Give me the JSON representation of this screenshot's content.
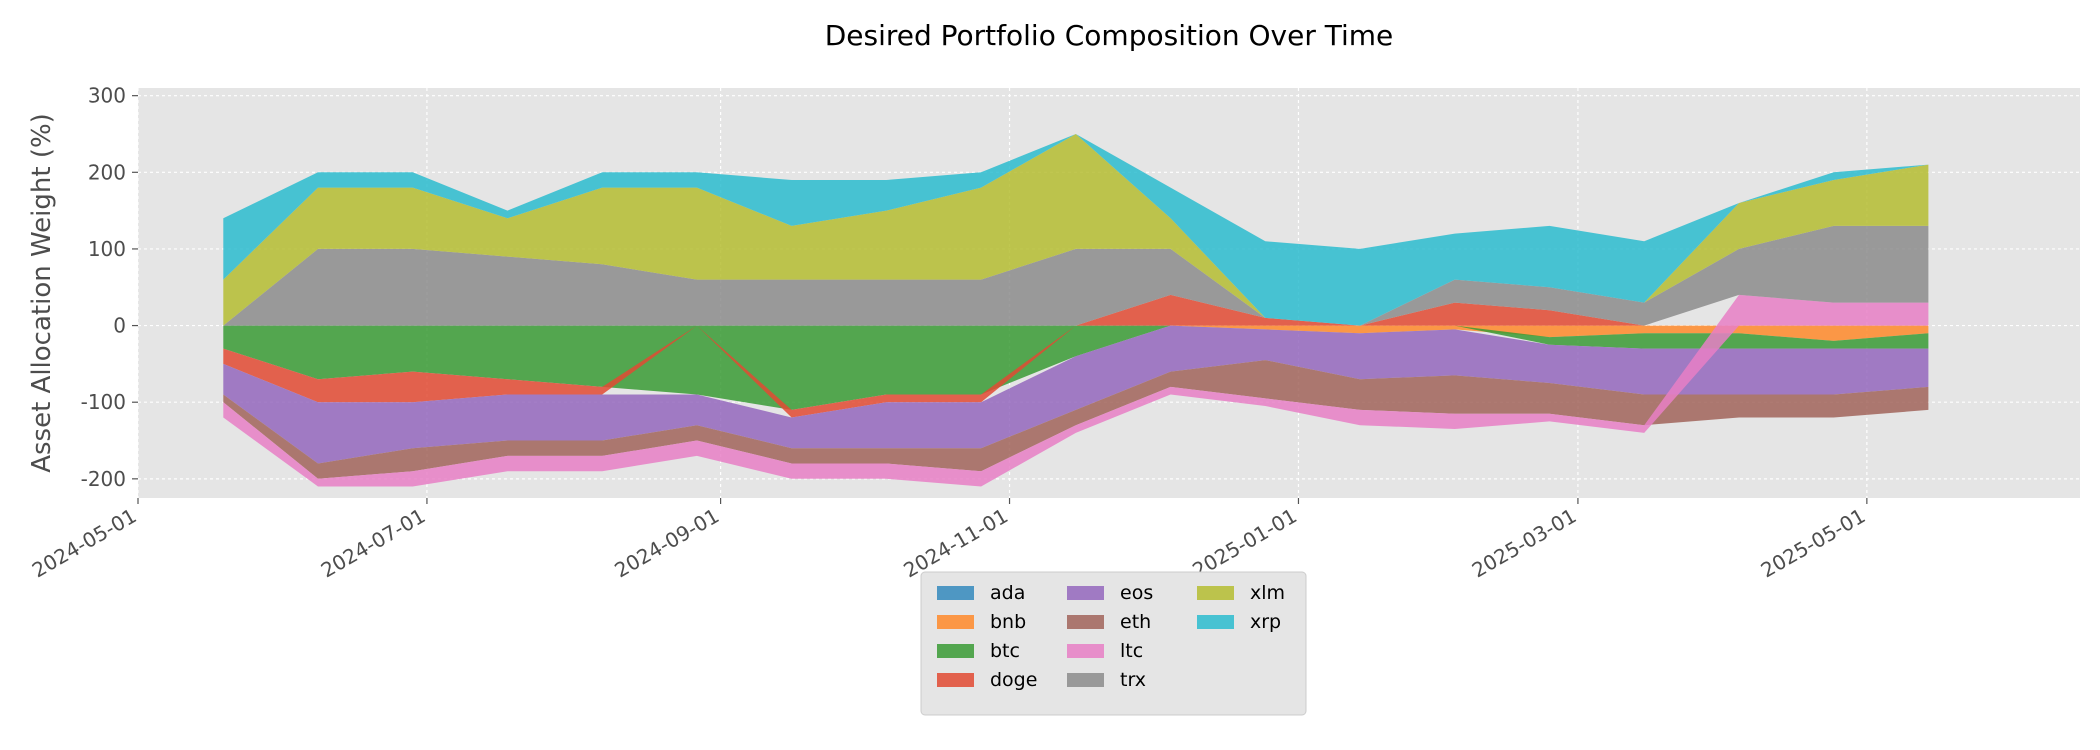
{
  "chart_data": {
    "type": "area",
    "title": "Desired Portfolio Composition Over Time",
    "xlabel": "",
    "ylabel": "Asset Allocation Weight (%)",
    "xlim": [
      "2024-05-01",
      "2025-06-15"
    ],
    "ylim": [
      -225,
      310
    ],
    "x_ticks": [
      "2024-05-01",
      "2024-07-01",
      "2024-09-01",
      "2024-11-01",
      "2025-01-01",
      "2025-03-01",
      "2025-05-01"
    ],
    "y_ticks": [
      300,
      200,
      100,
      0,
      -100,
      -200
    ],
    "grid": true,
    "legend_position": "bottom-center",
    "x": [
      "2024-05-19",
      "2024-06-08",
      "2024-06-28",
      "2024-07-18",
      "2024-08-07",
      "2024-08-27",
      "2024-09-16",
      "2024-10-06",
      "2024-10-26",
      "2024-11-15",
      "2024-12-05",
      "2024-12-25",
      "2025-01-14",
      "2025-02-03",
      "2025-02-23",
      "2025-03-15",
      "2025-04-04",
      "2025-04-24",
      "2025-05-14"
    ],
    "series": [
      {
        "name": "ada",
        "color": "#348abd",
        "values": [
          0,
          0,
          0,
          0,
          0,
          0,
          0,
          0,
          0,
          0,
          0,
          0,
          0,
          0,
          0,
          0,
          0,
          0,
          0
        ]
      },
      {
        "name": "bnb",
        "color": "#ff8a2a",
        "values": [
          0,
          0,
          0,
          0,
          0,
          0,
          0,
          0,
          0,
          0,
          0,
          -5,
          -10,
          -5,
          -15,
          -10,
          -10,
          -20,
          -10
        ]
      },
      {
        "name": "btc",
        "color": "#3a9b35",
        "values": [
          -30,
          -70,
          -60,
          -70,
          -80,
          -90,
          -110,
          -90,
          -90,
          -40,
          0,
          0,
          0,
          0,
          -10,
          -20,
          -20,
          -10,
          -20
        ]
      },
      {
        "name": "doge",
        "color": "#e24a33",
        "values": [
          -20,
          -30,
          -40,
          -20,
          -10,
          0,
          -10,
          -10,
          -10,
          0,
          40,
          10,
          0,
          30,
          20,
          0,
          0,
          0,
          0
        ]
      },
      {
        "name": "eos",
        "color": "#9467bd",
        "values": [
          -40,
          -80,
          -60,
          -60,
          -60,
          -40,
          -40,
          -60,
          -60,
          -70,
          -60,
          -40,
          -60,
          -60,
          -50,
          -60,
          -60,
          -60,
          -50
        ]
      },
      {
        "name": "eth",
        "color": "#a1645b",
        "values": [
          -10,
          -20,
          -30,
          -20,
          -20,
          -20,
          -20,
          -20,
          -30,
          -20,
          -20,
          -50,
          -40,
          -50,
          -40,
          -40,
          -30,
          -30,
          -30
        ]
      },
      {
        "name": "ltc",
        "color": "#e77fc5",
        "values": [
          -20,
          -10,
          -20,
          -20,
          -20,
          -20,
          -20,
          -20,
          -20,
          -10,
          -10,
          -10,
          -20,
          -20,
          -10,
          -10,
          40,
          30,
          30
        ]
      },
      {
        "name": "trx",
        "color": "#8c8c8c",
        "values": [
          0,
          100,
          100,
          90,
          80,
          60,
          60,
          60,
          60,
          100,
          60,
          0,
          0,
          30,
          30,
          30,
          60,
          100,
          100
        ]
      },
      {
        "name": "xlm",
        "color": "#b5bd31",
        "values": [
          60,
          80,
          80,
          50,
          100,
          120,
          70,
          90,
          120,
          150,
          40,
          0,
          0,
          0,
          0,
          0,
          60,
          60,
          80
        ]
      },
      {
        "name": "xrp",
        "color": "#2bbccf",
        "values": [
          80,
          20,
          20,
          10,
          20,
          20,
          60,
          40,
          20,
          0,
          40,
          100,
          100,
          60,
          80,
          80,
          0,
          10,
          0
        ]
      }
    ]
  }
}
